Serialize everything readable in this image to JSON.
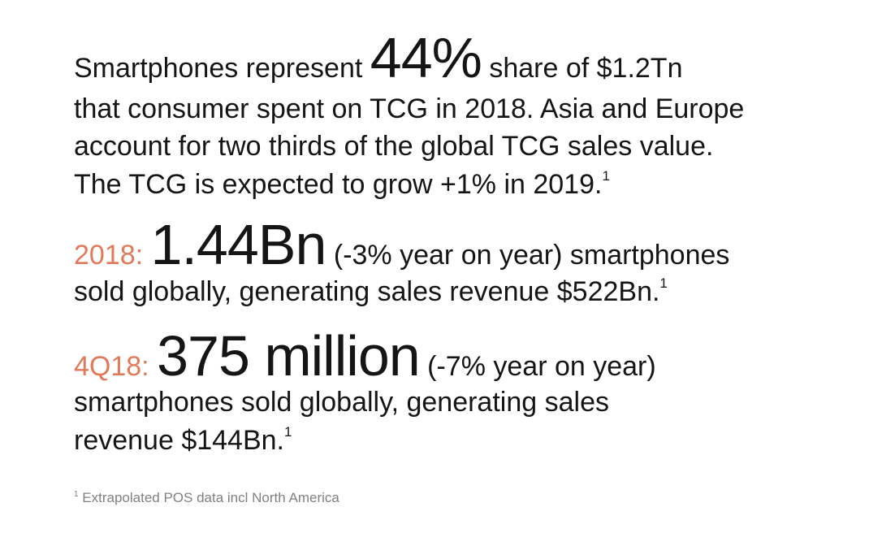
{
  "intro": {
    "prefix": "Smartphones represent",
    "figure": "44%",
    "suffix": "share of $1.2Tn",
    "lines": [
      "that consumer spent on TCG in 2018. Asia and Europe",
      "account for two thirds of the global TCG sales value.",
      "The TCG is expected to grow +1% in 2019."
    ],
    "note_ref": "1"
  },
  "stat_2018": {
    "label": "2018:",
    "figure": "1.44Bn",
    "suffix": "(-3% year on year) smartphones",
    "lines": [
      "sold globally, generating sales revenue $522Bn."
    ],
    "note_ref": "1"
  },
  "stat_4q18": {
    "label": "4Q18:",
    "figure": "375 million",
    "suffix": "(-7% year on year)",
    "lines": [
      "smartphones sold globally, generating sales",
      "revenue $144Bn."
    ],
    "note_ref": "1"
  },
  "footnote": {
    "marker": "1",
    "text": "Extrapolated POS data incl North America"
  }
}
